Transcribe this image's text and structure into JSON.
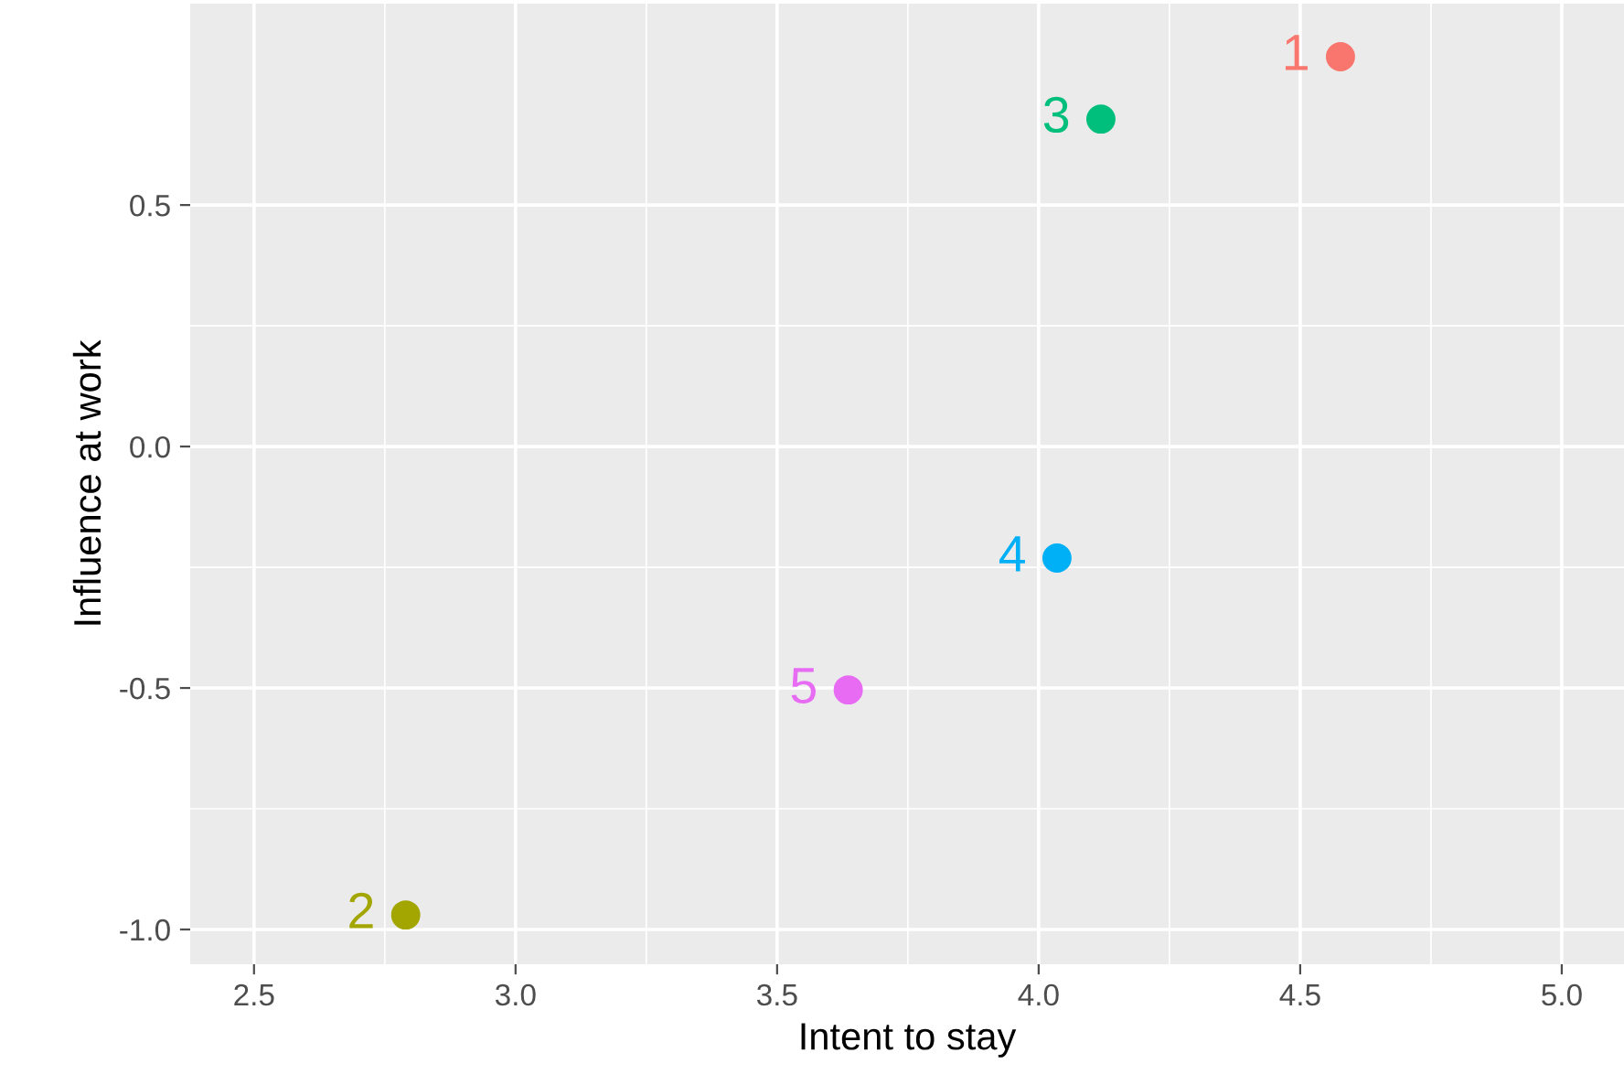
{
  "chart_data": {
    "type": "scatter",
    "xlabel": "Intent to stay",
    "ylabel": "Influence at work",
    "x": [
      4.577,
      2.79,
      4.119,
      4.035,
      3.636
    ],
    "values": [
      0.807,
      -0.97,
      0.678,
      -0.231,
      -0.504
    ],
    "colors": [
      "#f8766d",
      "#a3a500",
      "#00bf7d",
      "#00b0f6",
      "#e76bf3"
    ],
    "annotations": [
      {
        "text": "1",
        "x": 4.577,
        "y": 0.807
      },
      {
        "text": "2",
        "x": 2.79,
        "y": -0.97
      },
      {
        "text": "3",
        "x": 4.119,
        "y": 0.678
      },
      {
        "text": "4",
        "x": 4.035,
        "y": -0.231
      },
      {
        "text": "5",
        "x": 3.636,
        "y": -0.504
      }
    ],
    "xlim": [
      2.378,
      5.119
    ],
    "ylim": [
      -1.072,
      0.917
    ],
    "xticks": [
      {
        "value": 2.5,
        "label": "2.5"
      },
      {
        "value": 3.0,
        "label": "3.0"
      },
      {
        "value": 3.5,
        "label": "3.5"
      },
      {
        "value": 4.0,
        "label": "4.0"
      },
      {
        "value": 4.5,
        "label": "4.5"
      },
      {
        "value": 5.0,
        "label": "5.0"
      }
    ],
    "yticks": [
      {
        "value": -1.0,
        "label": "-1.0"
      },
      {
        "value": -0.5,
        "label": "-0.5"
      },
      {
        "value": 0.0,
        "label": "0.0"
      },
      {
        "value": 0.5,
        "label": "0.5"
      }
    ],
    "grid": true,
    "marker": "circle"
  }
}
